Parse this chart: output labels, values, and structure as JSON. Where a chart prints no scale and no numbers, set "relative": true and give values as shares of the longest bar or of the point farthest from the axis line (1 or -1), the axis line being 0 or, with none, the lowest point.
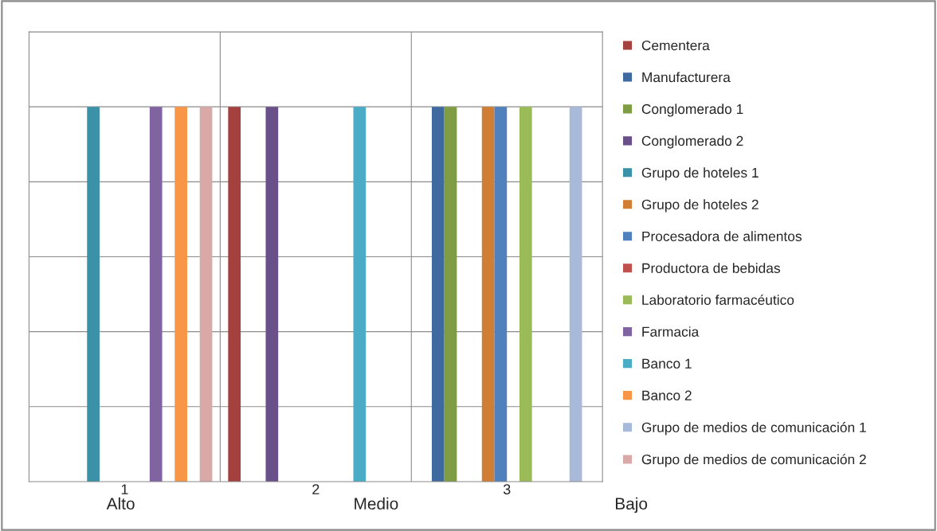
{
  "chart_data": {
    "type": "bar",
    "relative": true,
    "grid": true,
    "legend": "right",
    "categories": [
      "1",
      "2",
      "3"
    ],
    "series": [
      {
        "name": "Cementera",
        "color": "#a4403d",
        "values": [
          null,
          1,
          null
        ]
      },
      {
        "name": "Manufacturera",
        "color": "#3f6aa0",
        "values": [
          null,
          null,
          1
        ]
      },
      {
        "name": "Conglomerado 1",
        "color": "#7f9d44",
        "values": [
          null,
          null,
          1
        ]
      },
      {
        "name": "Conglomerado 2",
        "color": "#6a5088",
        "values": [
          null,
          1,
          null
        ]
      },
      {
        "name": "Grupo de hoteles 1",
        "color": "#3b91a7",
        "values": [
          1,
          null,
          null
        ]
      },
      {
        "name": "Grupo de hoteles 2",
        "color": "#d17e35",
        "values": [
          null,
          null,
          1
        ]
      },
      {
        "name": "Procesadora de alimentos",
        "color": "#4f81bd",
        "values": [
          null,
          null,
          1
        ]
      },
      {
        "name": "Productora de bebidas",
        "color": "#c0504d",
        "values": [
          null,
          null,
          null
        ]
      },
      {
        "name": "Laboratorio farmacéutico",
        "color": "#9bbb59",
        "values": [
          null,
          null,
          1
        ]
      },
      {
        "name": "Farmacia",
        "color": "#8064a2",
        "values": [
          1,
          null,
          null
        ]
      },
      {
        "name": "Banco 1",
        "color": "#4bacc6",
        "values": [
          null,
          1,
          null
        ]
      },
      {
        "name": "Banco 2",
        "color": "#f79646",
        "values": [
          1,
          null,
          null
        ]
      },
      {
        "name": "Grupo de medios de comunicación 1",
        "color": "#a9b9d9",
        "values": [
          null,
          null,
          1
        ]
      },
      {
        "name": "Grupo de medios de comunicación 2",
        "color": "#d9a9a8",
        "values": [
          1,
          null,
          null
        ]
      }
    ],
    "annotations": [
      "Alto",
      "Medio",
      "Bajo"
    ]
  }
}
